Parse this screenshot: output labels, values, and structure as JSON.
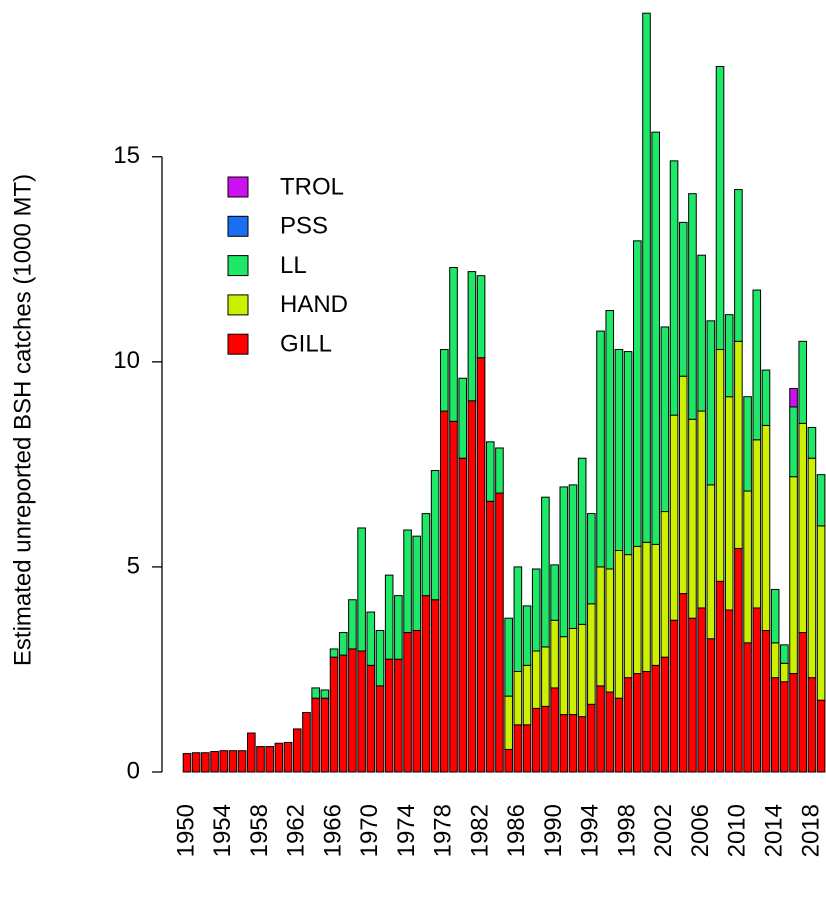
{
  "chart_data": {
    "type": "stacked_bar",
    "ylabel": "Estimated unreported BSH catches (1000 MT)",
    "categories": [
      1950,
      null,
      null,
      null,
      1954,
      null,
      null,
      null,
      1958,
      null,
      null,
      null,
      1962,
      null,
      null,
      null,
      1966,
      null,
      null,
      null,
      1970,
      null,
      null,
      null,
      1974,
      null,
      null,
      null,
      1978,
      null,
      null,
      null,
      1982,
      null,
      null,
      null,
      1986,
      null,
      null,
      null,
      1990,
      null,
      null,
      null,
      1994,
      null,
      null,
      null,
      1998,
      null,
      null,
      null,
      2002,
      null,
      null,
      null,
      2006,
      null,
      null,
      null,
      2010,
      null,
      null,
      null,
      2014,
      null,
      null,
      null,
      2018,
      null
    ],
    "series": [
      {
        "name": "GILL",
        "color": "#ff0000",
        "values": [
          0.45,
          0.47,
          0.47,
          0.5,
          0.52,
          0.52,
          0.52,
          0.95,
          0.62,
          0.62,
          0.7,
          0.72,
          1.05,
          1.45,
          1.8,
          1.8,
          2.8,
          2.85,
          3.0,
          2.95,
          2.6,
          2.1,
          2.75,
          2.75,
          3.4,
          3.45,
          4.3,
          4.2,
          8.8,
          8.55,
          7.65,
          9.05,
          10.1,
          6.6,
          6.8,
          0.55,
          1.15,
          1.15,
          1.55,
          1.6,
          2.05,
          1.4,
          1.4,
          1.35,
          1.65,
          2.1,
          1.95,
          1.8,
          2.3,
          2.4,
          2.45,
          2.6,
          2.8,
          3.7,
          4.35,
          3.75,
          4.0,
          3.25,
          4.65,
          3.95,
          5.45,
          3.15,
          4.0,
          3.45,
          2.3,
          2.2,
          2.4,
          3.4,
          2.3,
          1.75
        ]
      },
      {
        "name": "HAND",
        "color": "#cdf000",
        "values": [
          0,
          0,
          0,
          0,
          0,
          0,
          0,
          0,
          0,
          0,
          0,
          0,
          0,
          0,
          0,
          0,
          0,
          0,
          0,
          0,
          0,
          0,
          0,
          0,
          0,
          0,
          0,
          0,
          0,
          0,
          0,
          0,
          0,
          0,
          0,
          1.3,
          1.3,
          1.45,
          1.4,
          1.45,
          1.65,
          1.9,
          2.1,
          2.25,
          2.45,
          2.9,
          3.0,
          3.6,
          3.0,
          3.1,
          3.15,
          2.95,
          3.55,
          5.0,
          5.3,
          4.85,
          4.8,
          3.75,
          5.65,
          5.2,
          5.05,
          3.7,
          4.1,
          5.0,
          0.85,
          0.45,
          4.8,
          5.1,
          5.35,
          4.25
        ]
      },
      {
        "name": "LL",
        "color": "#1ee868",
        "values": [
          0,
          0,
          0,
          0,
          0,
          0,
          0,
          0,
          0,
          0,
          0,
          0,
          0,
          0,
          0.25,
          0.2,
          0.2,
          0.55,
          1.2,
          3.0,
          1.3,
          1.35,
          2.05,
          1.55,
          2.5,
          2.3,
          2.0,
          3.15,
          1.5,
          3.75,
          1.95,
          3.15,
          2.0,
          1.45,
          1.1,
          1.9,
          2.55,
          1.45,
          2.0,
          3.65,
          1.35,
          3.65,
          3.5,
          4.05,
          2.2,
          5.75,
          6.3,
          4.9,
          4.95,
          7.45,
          12.9,
          10.05,
          4.5,
          6.2,
          3.75,
          5.5,
          3.8,
          4.0,
          6.9,
          2.0,
          3.7,
          2.3,
          3.65,
          1.35,
          1.3,
          0.45,
          1.7,
          2.0,
          0.75,
          1.25
        ]
      },
      {
        "name": "PSS",
        "color": "#1a6ff0",
        "values": [
          0,
          0,
          0,
          0,
          0,
          0,
          0,
          0,
          0,
          0,
          0,
          0,
          0,
          0,
          0,
          0,
          0,
          0,
          0,
          0,
          0,
          0,
          0,
          0,
          0,
          0,
          0,
          0,
          0,
          0,
          0,
          0,
          0,
          0,
          0,
          0,
          0,
          0,
          0,
          0,
          0,
          0,
          0,
          0,
          0,
          0,
          0,
          0,
          0,
          0,
          0,
          0,
          0,
          0,
          0,
          0,
          0,
          0,
          0,
          0,
          0,
          0,
          0,
          0,
          0,
          0,
          0,
          0,
          0,
          0
        ]
      },
      {
        "name": "TROL",
        "color": "#cc10f0",
        "values": [
          0,
          0,
          0,
          0,
          0,
          0,
          0,
          0,
          0,
          0,
          0,
          0,
          0,
          0,
          0,
          0,
          0,
          0,
          0,
          0,
          0,
          0,
          0,
          0,
          0,
          0,
          0,
          0,
          0,
          0,
          0,
          0,
          0,
          0,
          0,
          0,
          0,
          0,
          0,
          0,
          0,
          0,
          0,
          0,
          0,
          0,
          0,
          0,
          0,
          0,
          0,
          0,
          0,
          0,
          0,
          0,
          0,
          0,
          0,
          0,
          0,
          0,
          0,
          0,
          0,
          0,
          0.45,
          0,
          0,
          0
        ]
      }
    ],
    "ylim": [
      0,
      18.7
    ],
    "yticks": [
      0,
      5,
      10,
      15
    ],
    "legend": "top-left"
  }
}
